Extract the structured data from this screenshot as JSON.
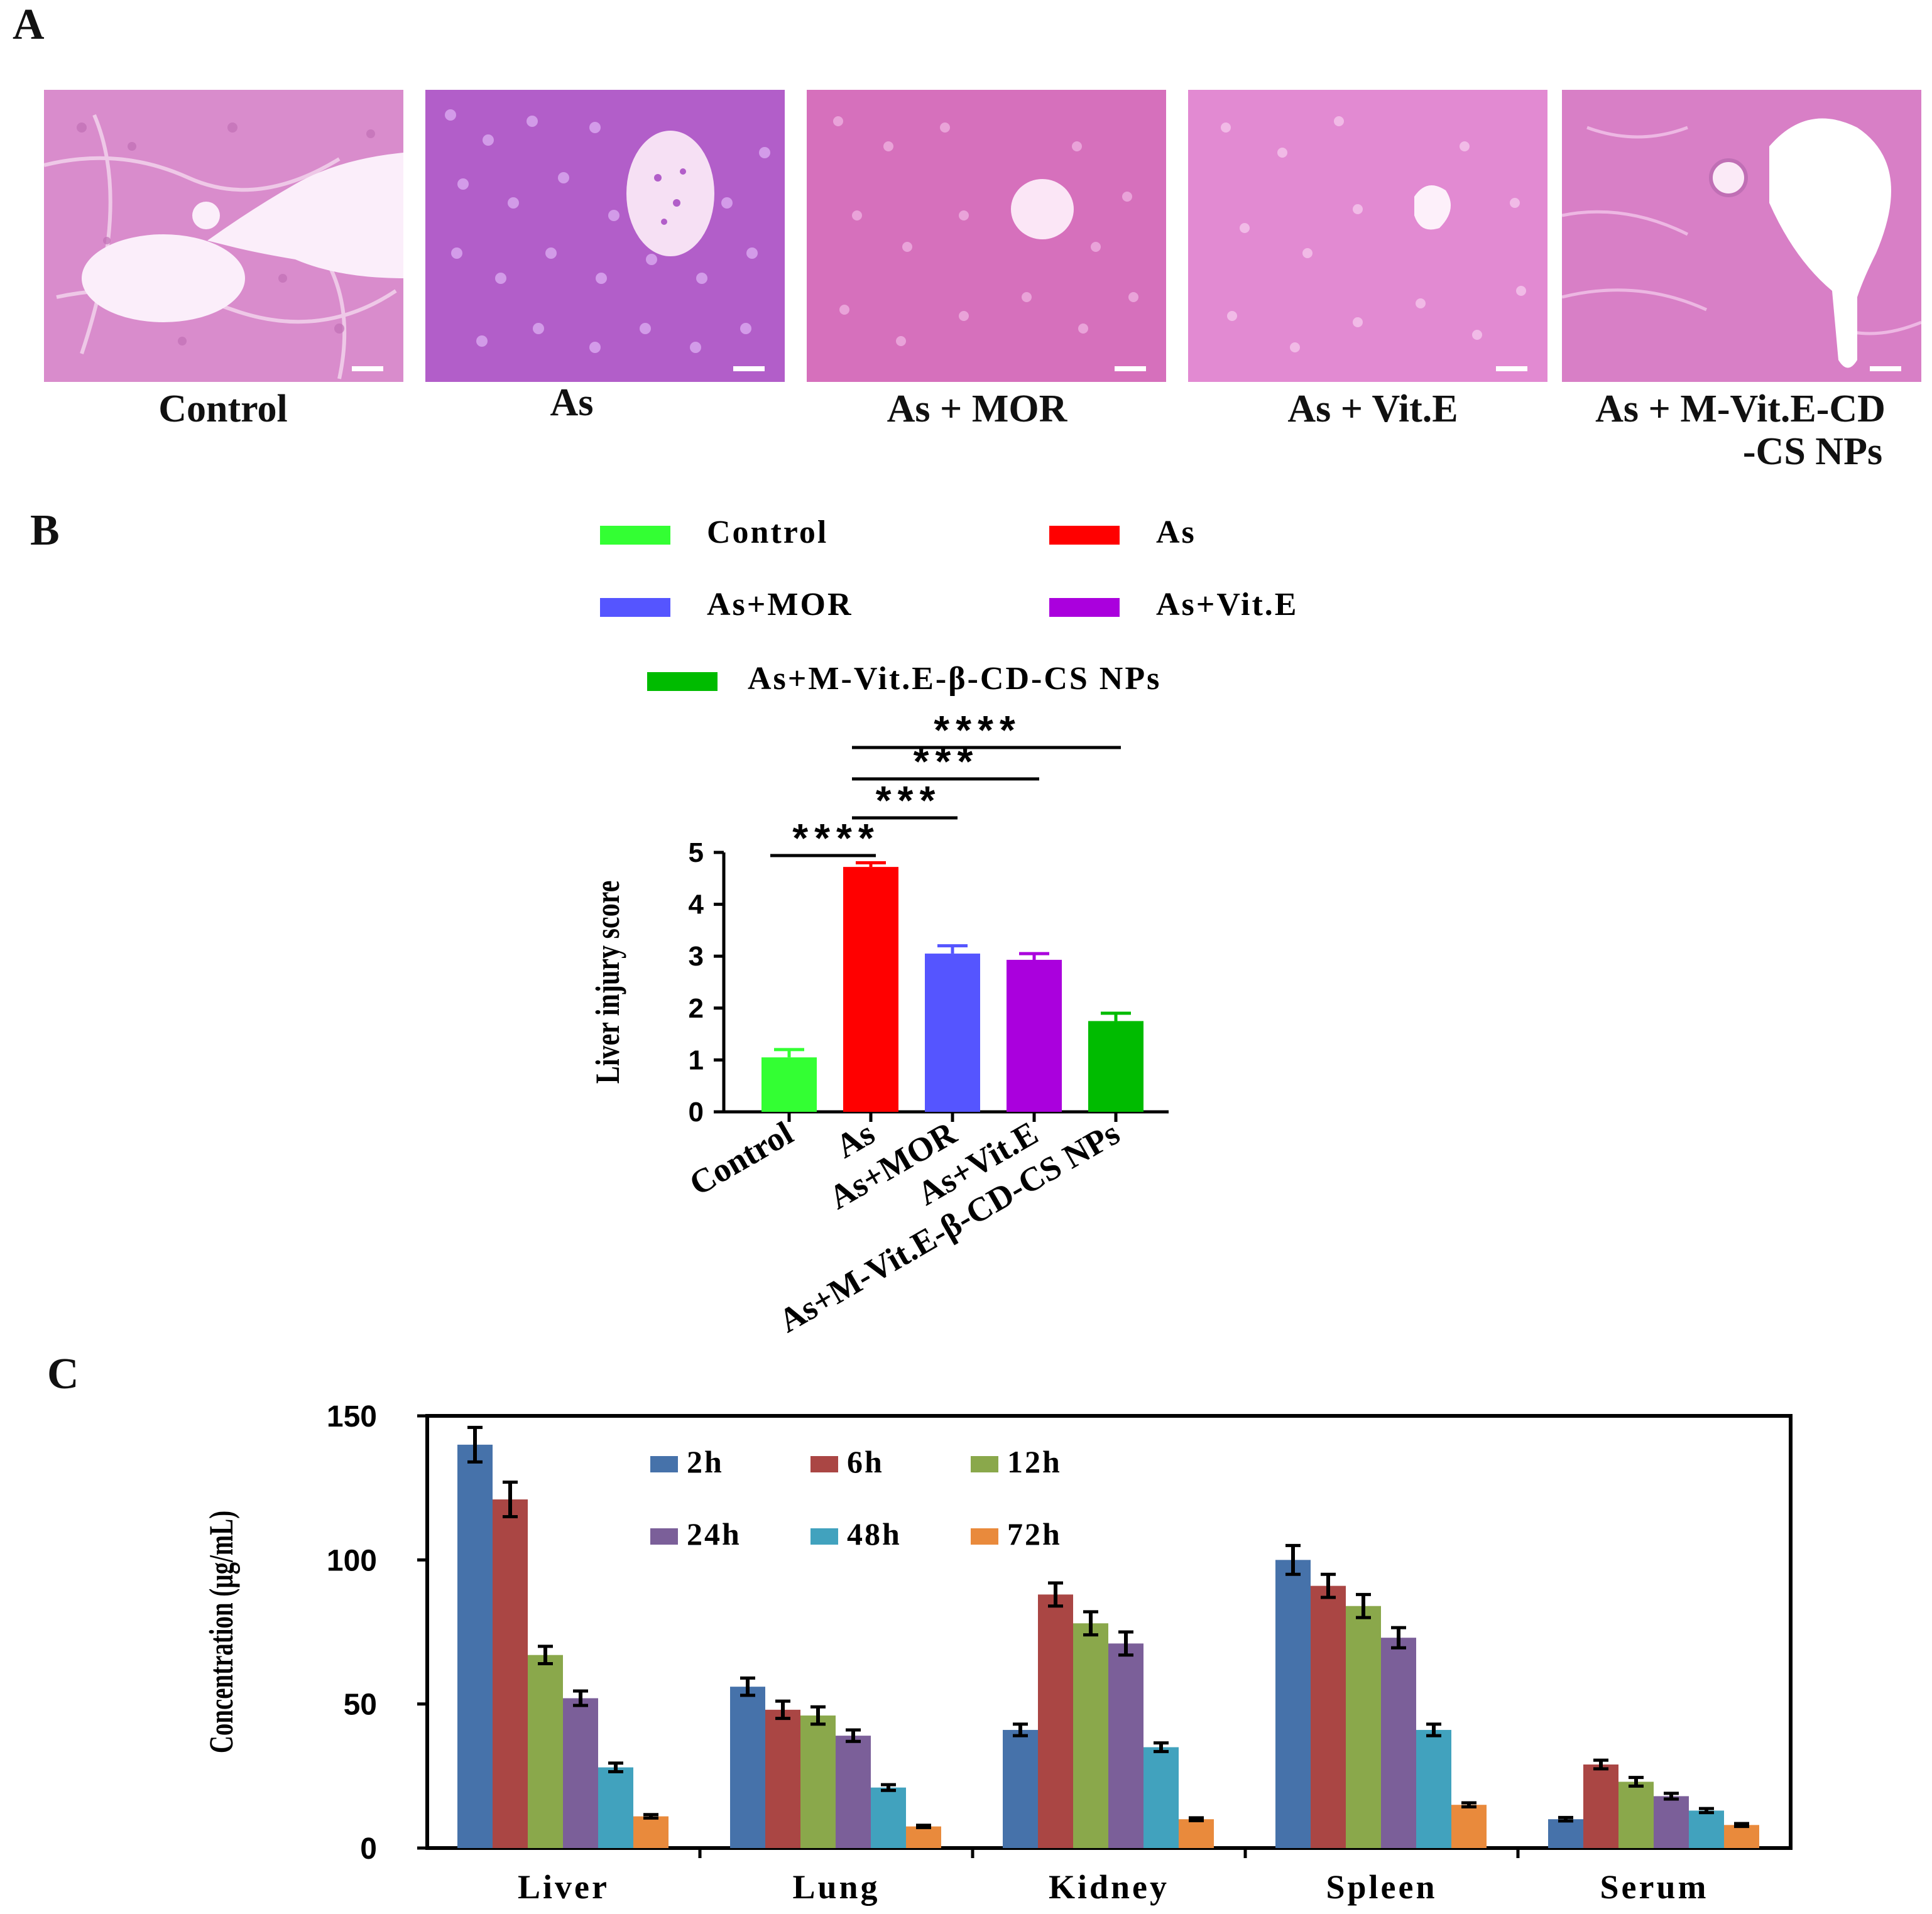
{
  "panels": {
    "A": {
      "letter": "A",
      "images": [
        {
          "caption": "Control"
        },
        {
          "caption": "As"
        },
        {
          "caption": "As + MOR"
        },
        {
          "caption": "As + Vit.E"
        },
        {
          "caption_line1": "As + M-Vit.E-CD",
          "caption_line2": "-CS NPs"
        }
      ]
    },
    "B": {
      "letter": "B"
    },
    "C": {
      "letter": "C"
    }
  },
  "chart_data": [
    {
      "type": "bar",
      "panel": "B",
      "ylabel": "Liver injury score",
      "ylim": [
        0,
        5
      ],
      "yticks": [
        0,
        1,
        2,
        3,
        4,
        5
      ],
      "categories": [
        "Control",
        "As",
        "As+MOR",
        "As+Vit.E",
        "As+M-Vit.E-β-CD-CS NPs"
      ],
      "legend": [
        "Control",
        "As",
        "As+MOR",
        "As+Vit.E",
        "As+M-Vit.E-β-CD-CS NPs"
      ],
      "values": [
        1.05,
        4.72,
        3.05,
        2.93,
        1.75
      ],
      "errors": [
        0.15,
        0.08,
        0.15,
        0.12,
        0.15
      ],
      "colors": [
        "#33ff33",
        "#ff0000",
        "#5555ff",
        "#aa00dd",
        "#00bb00"
      ],
      "significance": [
        {
          "from": 0,
          "to": 1,
          "label": "****"
        },
        {
          "from": 1,
          "to": 2,
          "label": "***"
        },
        {
          "from": 1,
          "to": 3,
          "label": "***"
        },
        {
          "from": 1,
          "to": 4,
          "label": "****"
        }
      ]
    },
    {
      "type": "bar",
      "panel": "C",
      "ylabel": "Concentration (µg/mL)",
      "ylim": [
        0,
        150
      ],
      "yticks": [
        0,
        50,
        100,
        150
      ],
      "categories": [
        "Liver",
        "Lung",
        "Kidney",
        "Spleen",
        "Serum"
      ],
      "series": [
        {
          "name": "2h",
          "color": "#4672aa",
          "values": [
            140,
            56,
            41,
            100,
            10
          ],
          "errors": [
            6,
            3,
            2,
            5,
            0.6
          ]
        },
        {
          "name": "6h",
          "color": "#aa4644",
          "values": [
            121,
            48,
            88,
            91,
            29
          ],
          "errors": [
            6,
            3,
            4,
            4,
            1.5
          ]
        },
        {
          "name": "12h",
          "color": "#8aa84b",
          "values": [
            67,
            46,
            78,
            84,
            23
          ],
          "errors": [
            3,
            3,
            4,
            4,
            1.5
          ]
        },
        {
          "name": "24h",
          "color": "#7b5f99",
          "values": [
            52,
            39,
            71,
            73,
            18
          ],
          "errors": [
            2.5,
            2,
            4,
            3.5,
            1
          ]
        },
        {
          "name": "48h",
          "color": "#41a2be",
          "values": [
            28,
            21,
            35,
            41,
            13
          ],
          "errors": [
            1.5,
            1,
            1.5,
            2,
            0.7
          ]
        },
        {
          "name": "72h",
          "color": "#e98a3c",
          "values": [
            11,
            7.5,
            10,
            15,
            8
          ],
          "errors": [
            0.6,
            0.4,
            0.5,
            0.7,
            0.5
          ]
        }
      ]
    }
  ]
}
